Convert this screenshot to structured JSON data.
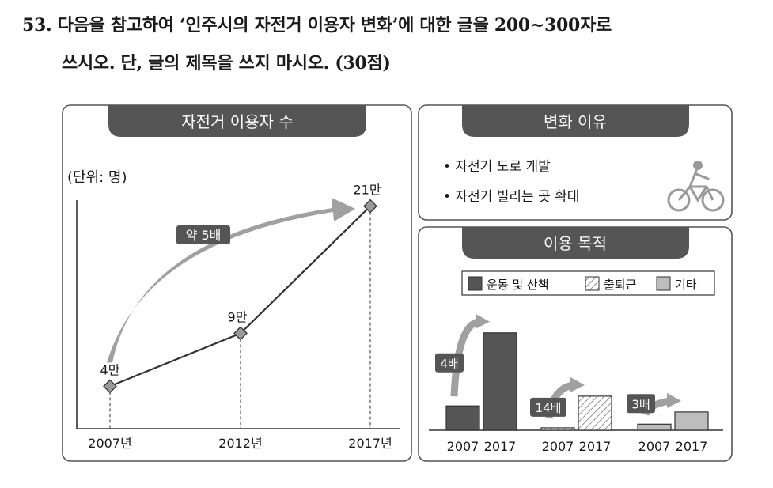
{
  "question": {
    "line1": "53. 다음을 참고하여 ‘인주시의 자전거 이용자 변화’에 대한 글을 200~300자로",
    "line2": "쓰시오. 단, 글의 제목을 쓰지 마시오. (30점)"
  },
  "colors": {
    "dark": "#555555",
    "mid": "#9e9e9e",
    "light": "#bdbdbd",
    "arrow": "#a0a0a0"
  },
  "chart_data": [
    {
      "type": "line",
      "title": "자전거 이용자 수",
      "unit_label": "(단위: 명)",
      "categories": [
        "2007년",
        "2012년",
        "2017년"
      ],
      "values": [
        40000,
        90000,
        210000
      ],
      "point_labels": [
        "4만",
        "9만",
        "21만"
      ],
      "annotation": "약 5배"
    },
    {
      "type": "table",
      "title": "변화 이유",
      "items": [
        "• 자전거 도로 개발",
        "• 자전거 빌리는 곳 확대"
      ],
      "icon": "bicycle-rider-icon"
    },
    {
      "type": "bar",
      "title": "이용 목적",
      "legend": [
        "운동 및 산책",
        "출퇴근",
        "기타"
      ],
      "groups": [
        {
          "name": "운동 및 산책",
          "categories": [
            "2007",
            "2017"
          ],
          "values": [
            4,
            16
          ],
          "annotation": "4배",
          "style": "dark"
        },
        {
          "name": "출퇴근",
          "categories": [
            "2007",
            "2017"
          ],
          "values": [
            0.4,
            5.6
          ],
          "annotation": "14배",
          "style": "hatched"
        },
        {
          "name": "기타",
          "categories": [
            "2007",
            "2017"
          ],
          "values": [
            1,
            3
          ],
          "annotation": "3배",
          "style": "light"
        }
      ]
    }
  ]
}
